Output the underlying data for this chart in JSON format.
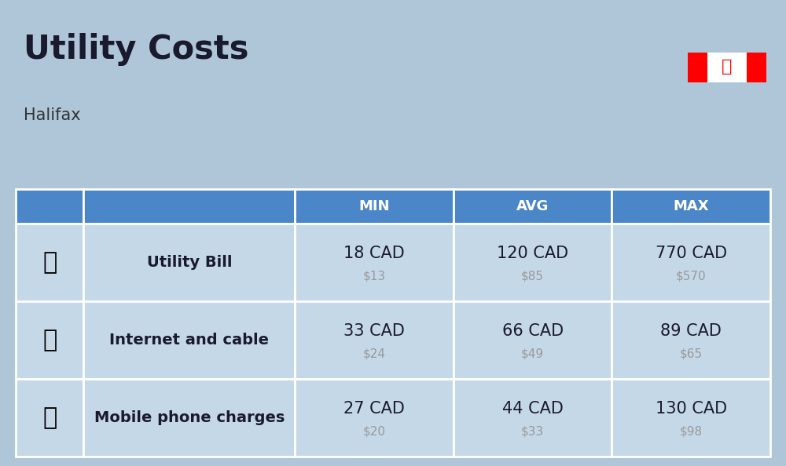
{
  "title": "Utility Costs",
  "subtitle": "Halifax",
  "background_color": "#aec6d8",
  "header_bg_color": "#4a86c8",
  "header_text_color": "#ffffff",
  "row_bg_color": "#c5d8e8",
  "cell_border_color": "#ffffff",
  "col_headers": [
    "MIN",
    "AVG",
    "MAX"
  ],
  "rows": [
    {
      "label": "Utility Bill",
      "min_cad": "18 CAD",
      "min_usd": "$13",
      "avg_cad": "120 CAD",
      "avg_usd": "$85",
      "max_cad": "770 CAD",
      "max_usd": "$570"
    },
    {
      "label": "Internet and cable",
      "min_cad": "33 CAD",
      "min_usd": "$24",
      "avg_cad": "66 CAD",
      "avg_usd": "$49",
      "max_cad": "89 CAD",
      "max_usd": "$65"
    },
    {
      "label": "Mobile phone charges",
      "min_cad": "27 CAD",
      "min_usd": "$20",
      "avg_cad": "44 CAD",
      "avg_usd": "$33",
      "max_cad": "130 CAD",
      "max_usd": "$98"
    }
  ],
  "cad_fontsize": 15,
  "usd_fontsize": 11,
  "usd_color": "#999999",
  "label_fontsize": 14,
  "header_fontsize": 13,
  "title_fontsize": 30,
  "subtitle_fontsize": 15,
  "title_color": "#1a1a2e",
  "subtitle_color": "#333333",
  "data_color": "#1a1a2e"
}
